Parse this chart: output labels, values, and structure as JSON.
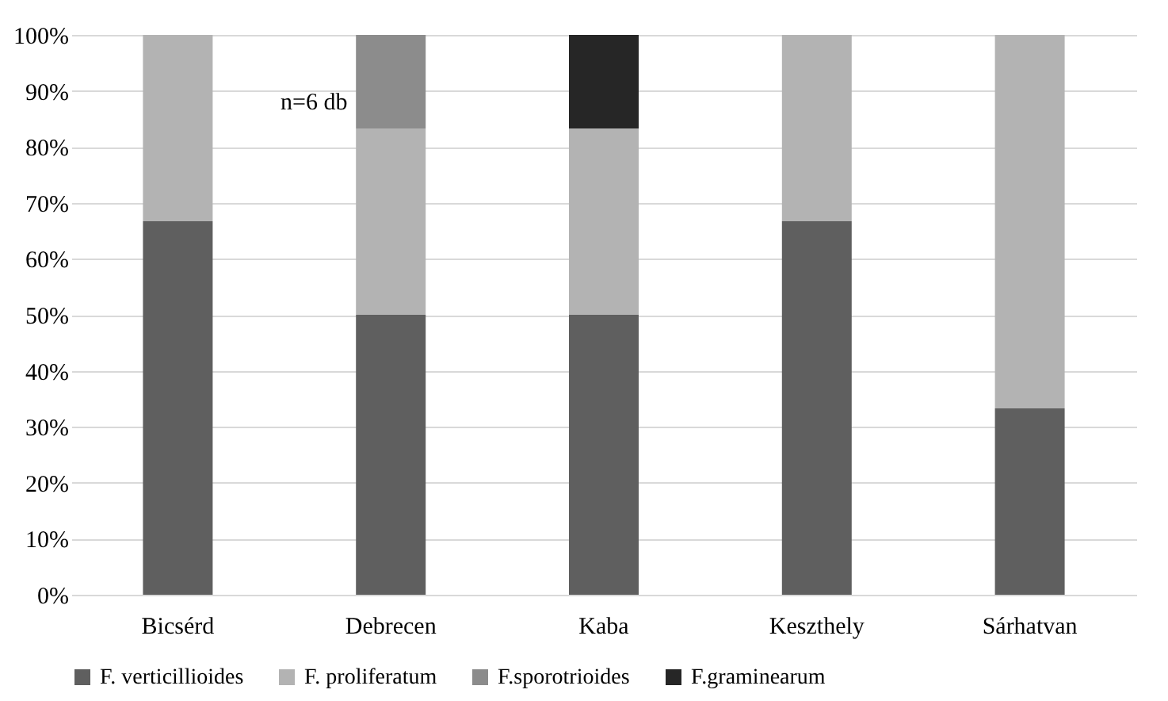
{
  "chart_data": {
    "type": "bar",
    "stacked": true,
    "categories": [
      "Bicsérd",
      "Debrecen",
      "Kaba",
      "Keszthely",
      "Sárhatvan"
    ],
    "series": [
      {
        "name": "F. verticillioides",
        "color": "#5f5f5f",
        "values": [
          66.7,
          50,
          50,
          66.7,
          33.3
        ]
      },
      {
        "name": "F. proliferatum",
        "color": "#b3b3b3",
        "values": [
          33.3,
          33.3,
          33.3,
          33.3,
          66.7
        ]
      },
      {
        "name": "F.sporotrioides",
        "color": "#8c8c8c",
        "values": [
          null,
          16.7,
          null,
          null,
          null
        ]
      },
      {
        "name": "F.graminearum",
        "color": "#262626",
        "values": [
          null,
          null,
          16.7,
          null,
          null
        ]
      }
    ],
    "ylim": [
      0,
      100
    ],
    "yticks": [
      {
        "value": 0,
        "label": "0%"
      },
      {
        "value": 10,
        "label": "10%"
      },
      {
        "value": 20,
        "label": "20%"
      },
      {
        "value": 30,
        "label": "30%"
      },
      {
        "value": 40,
        "label": "40%"
      },
      {
        "value": 50,
        "label": "50%"
      },
      {
        "value": 60,
        "label": "60%"
      },
      {
        "value": 70,
        "label": "70%"
      },
      {
        "value": 80,
        "label": "80%"
      },
      {
        "value": 90,
        "label": "90%"
      },
      {
        "value": 100,
        "label": "100%"
      }
    ],
    "grid": "y",
    "legend": "bottom",
    "annotations": [
      "n=6 db"
    ]
  }
}
